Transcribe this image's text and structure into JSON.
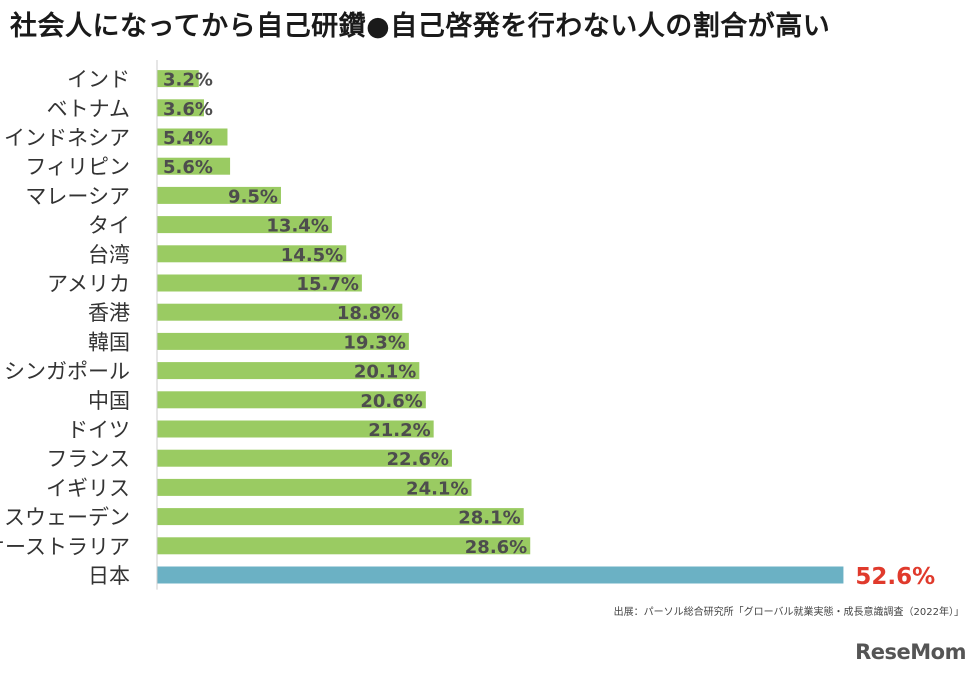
{
  "title": "社会人になってから自己研鑽●自己啓発を行わない人の割合が高い",
  "source": "出展：パーソル総合研究所「グローバル就業実態・成長意識調査（2022年）」",
  "logo": "ReseMom",
  "colors": {
    "bar_default": "#9acb62",
    "bar_highlight": "#6bb1c4",
    "label_default": "#4d4d4d",
    "label_highlight": "#e03a2c",
    "category_text": "#333333",
    "axis": "#cccccc"
  },
  "chart_data": {
    "type": "bar",
    "orientation": "horizontal",
    "categories": [
      "インド",
      "ベトナム",
      "インドネシア",
      "フィリピン",
      "マレーシア",
      "タイ",
      "台湾",
      "アメリカ",
      "香港",
      "韓国",
      "シンガポール",
      "中国",
      "ドイツ",
      "フランス",
      "イギリス",
      "スウェーデン",
      "オーストラリア",
      "日本"
    ],
    "values": [
      3.2,
      3.6,
      5.4,
      5.6,
      9.5,
      13.4,
      14.5,
      15.7,
      18.8,
      19.3,
      20.1,
      20.6,
      21.2,
      22.6,
      24.1,
      28.1,
      28.6,
      52.6
    ],
    "data_labels": [
      "3.2%",
      "3.6%",
      "5.4%",
      "5.6%",
      "9.5%",
      "13.4%",
      "14.5%",
      "15.7%",
      "18.8%",
      "19.3%",
      "20.1%",
      "20.6%",
      "21.2%",
      "22.6%",
      "24.1%",
      "28.1%",
      "28.6%",
      "52.6%"
    ],
    "highlight_category": "日本",
    "xlim": [
      0,
      55
    ],
    "grid": false,
    "legend": "none"
  }
}
